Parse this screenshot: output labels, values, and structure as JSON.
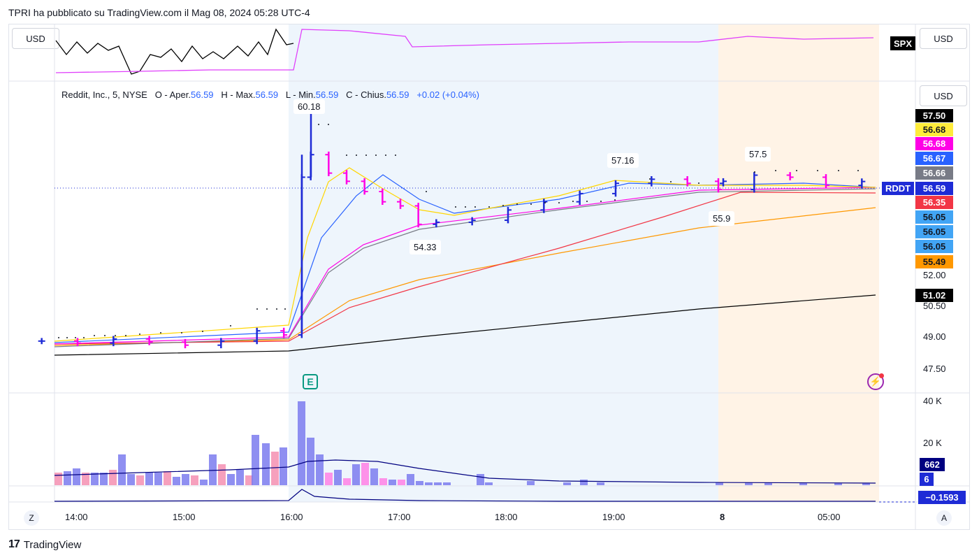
{
  "header": {
    "text": "TPRI ha pubblicato su TradingView.com il Mag 08, 2024 05:28 UTC-4"
  },
  "currency": {
    "top_left": "USD",
    "top_right": "USD",
    "main_right": "USD"
  },
  "compare_symbol": "SPX",
  "legend": {
    "name": "Reddit, Inc., 5, NYSE",
    "o_label": "O - Aper.",
    "o_val": "56.59",
    "h_label": "H - Max.",
    "h_val": "56.59",
    "l_label": "L - Min.",
    "l_val": "56.59",
    "c_label": "C - Chius.",
    "c_val": "56.59",
    "change": "+0.02 (+0.04%)"
  },
  "callouts": {
    "high1": "60.18",
    "low1": "54.33",
    "high2": "57.16",
    "high3": "57.5",
    "low2": "55.9"
  },
  "symbol_tag": "RDDT",
  "price_tags": [
    {
      "text": "57.50",
      "bg": "#000000",
      "fg": "#ffffff"
    },
    {
      "text": "56.68",
      "bg": "#ffeb3b",
      "fg": "#131722"
    },
    {
      "text": "56.68",
      "bg": "#ff00e6",
      "fg": "#ffffff"
    },
    {
      "text": "56.67",
      "bg": "#2962ff",
      "fg": "#ffffff"
    },
    {
      "text": "56.66",
      "bg": "#787b86",
      "fg": "#ffffff"
    },
    {
      "text": "56.59",
      "bg": "#1e2bd6",
      "fg": "#ffffff"
    },
    {
      "text": "56.35",
      "bg": "#f23645",
      "fg": "#ffffff"
    },
    {
      "text": "56.05",
      "bg": "#42a5f5",
      "fg": "#131722"
    },
    {
      "text": "56.05",
      "bg": "#42a5f5",
      "fg": "#131722"
    },
    {
      "text": "56.05",
      "bg": "#42a5f5",
      "fg": "#131722"
    },
    {
      "text": "55.49",
      "bg": "#ff9800",
      "fg": "#131722"
    },
    {
      "text": "51.02",
      "bg": "#000000",
      "fg": "#ffffff"
    }
  ],
  "price_axis_labels": [
    "52.00",
    "50.50",
    "49.00",
    "47.50"
  ],
  "volume_axis_labels": [
    "40 K",
    "20 K"
  ],
  "volume_tags": {
    "vol": "662",
    "vol2": "6",
    "osc": "−0.1593"
  },
  "time_labels": [
    "14:00",
    "15:00",
    "16:00",
    "17:00",
    "18:00",
    "19:00",
    "8",
    "05:00"
  ],
  "bottom_buttons": {
    "left": "Z",
    "right": "A"
  },
  "footer": {
    "brand": "TradingView"
  },
  "earnings_marker": "E",
  "colors": {
    "bull": "#1e2bd6",
    "bear": "#ff00e6",
    "premarket_bg": "#fff3e6",
    "session_bg": "#e8f1fb"
  },
  "chart_data": {
    "type": "line",
    "title": "Reddit, Inc., 5, NYSE",
    "ylim": [
      47.0,
      58.0
    ],
    "series": [
      {
        "name": "RDDT",
        "x": [
          "13:40",
          "14:00",
          "14:20",
          "14:40",
          "15:00",
          "15:20",
          "15:40",
          "15:55",
          "16:05",
          "16:10",
          "16:20",
          "16:30",
          "16:40",
          "16:50",
          "17:00",
          "17:10",
          "17:20",
          "17:40",
          "18:00",
          "18:20",
          "18:40",
          "19:00",
          "19:20",
          "19:40",
          "20:00",
          "04:00",
          "04:20",
          "04:40",
          "05:00",
          "05:20"
        ],
        "values": [
          48.8,
          48.7,
          48.9,
          48.75,
          48.6,
          48.8,
          49.3,
          49.1,
          56.8,
          57.9,
          57.0,
          56.6,
          56.1,
          55.6,
          55.4,
          54.5,
          54.6,
          54.7,
          55.2,
          55.6,
          56.0,
          56.5,
          56.7,
          56.5,
          56.6,
          56.2,
          56.9,
          56.8,
          56.4,
          56.59
        ]
      }
    ]
  }
}
